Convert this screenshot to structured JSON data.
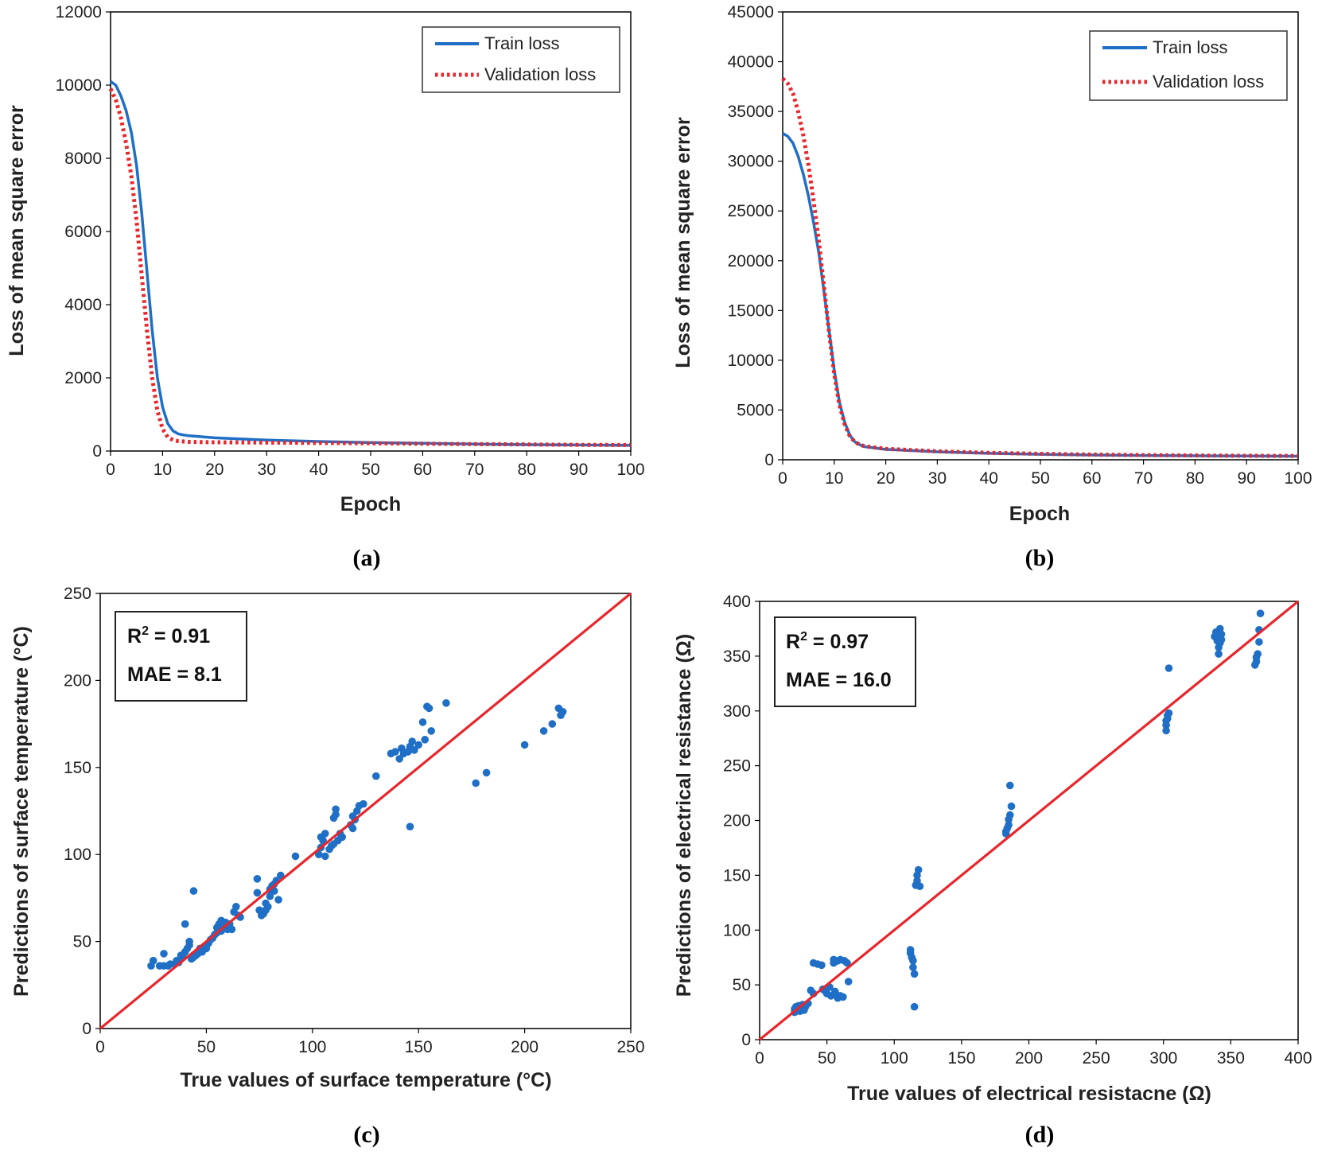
{
  "figure": {
    "colors": {
      "train": "#1f6fc6",
      "validation": "#e8262b",
      "points": "#1f6fc6",
      "ideal_line": "#e8262b",
      "frame": "#000000"
    }
  },
  "chart_data": [
    {
      "id": "a",
      "type": "line",
      "caption": "(a)",
      "xlabel": "Epoch",
      "ylabel": "Loss of mean square error",
      "xlim": [
        0,
        100
      ],
      "ylim": [
        0,
        12000
      ],
      "xticks": [
        "0",
        "10",
        "20",
        "30",
        "40",
        "50",
        "60",
        "70",
        "80",
        "90",
        "100"
      ],
      "yticks": [
        "0",
        "2000",
        "4000",
        "6000",
        "8000",
        "10000",
        "12000"
      ],
      "legend": {
        "position": "top-right",
        "entries": [
          "Train loss",
          "Validation loss"
        ]
      },
      "series": [
        {
          "name": "Train loss",
          "style": "solid",
          "x": [
            0,
            1,
            2,
            3,
            4,
            5,
            6,
            7,
            8,
            9,
            10,
            11,
            12,
            13,
            14,
            15,
            20,
            30,
            40,
            50,
            60,
            70,
            80,
            90,
            100
          ],
          "y": [
            10100,
            10000,
            9700,
            9300,
            8700,
            7800,
            6500,
            4900,
            3300,
            2000,
            1200,
            750,
            550,
            470,
            440,
            420,
            360,
            300,
            260,
            230,
            210,
            190,
            175,
            165,
            155
          ]
        },
        {
          "name": "Validation loss",
          "style": "dotted",
          "x": [
            0,
            1,
            2,
            3,
            4,
            5,
            6,
            7,
            8,
            9,
            10,
            11,
            12,
            13,
            14,
            15,
            20,
            30,
            40,
            50,
            60,
            70,
            80,
            90,
            100
          ],
          "y": [
            9900,
            9600,
            9100,
            8400,
            7500,
            6300,
            4800,
            3300,
            2000,
            1100,
            600,
            380,
            300,
            270,
            260,
            250,
            240,
            230,
            220,
            210,
            200,
            190,
            180,
            170,
            165
          ]
        }
      ]
    },
    {
      "id": "b",
      "type": "line",
      "caption": "(b)",
      "xlabel": "Epoch",
      "ylabel": "Loss of mean square error",
      "xlim": [
        0,
        100
      ],
      "ylim": [
        0,
        45000
      ],
      "xticks": [
        "0",
        "10",
        "20",
        "30",
        "40",
        "50",
        "60",
        "70",
        "80",
        "90",
        "100"
      ],
      "yticks": [
        "0",
        "5000",
        "10000",
        "15000",
        "20000",
        "25000",
        "30000",
        "35000",
        "40000",
        "45000"
      ],
      "legend": {
        "position": "top-right",
        "entries": [
          "Train loss",
          "Validation loss"
        ]
      },
      "series": [
        {
          "name": "Train loss",
          "style": "solid",
          "x": [
            0,
            1,
            2,
            3,
            4,
            5,
            6,
            7,
            8,
            9,
            10,
            11,
            12,
            13,
            14,
            15,
            16,
            20,
            30,
            40,
            50,
            60,
            70,
            80,
            90,
            100
          ],
          "y": [
            32800,
            32500,
            31800,
            30500,
            28700,
            26500,
            23800,
            20800,
            17000,
            13000,
            9000,
            5800,
            3800,
            2500,
            1800,
            1500,
            1300,
            1050,
            800,
            650,
            550,
            480,
            430,
            400,
            380,
            360
          ]
        },
        {
          "name": "Validation loss",
          "style": "dotted",
          "x": [
            0,
            1,
            2,
            3,
            4,
            5,
            6,
            7,
            8,
            9,
            10,
            11,
            12,
            13,
            14,
            15,
            16,
            20,
            30,
            40,
            50,
            60,
            70,
            80,
            90,
            100
          ],
          "y": [
            38300,
            37800,
            36800,
            35000,
            32600,
            29600,
            26000,
            22000,
            17500,
            12800,
            8600,
            5500,
            3600,
            2400,
            1800,
            1500,
            1350,
            1100,
            850,
            700,
            600,
            520,
            470,
            430,
            400,
            380
          ]
        }
      ]
    },
    {
      "id": "c",
      "type": "scatter",
      "caption": "(c)",
      "xlabel": "True values of surface temperature (°C)",
      "ylabel": "Predictions of surface temperature (°C)",
      "xlim": [
        0,
        250
      ],
      "ylim": [
        0,
        250
      ],
      "xticks": [
        "0",
        "50",
        "100",
        "150",
        "200",
        "250"
      ],
      "yticks": [
        "0",
        "50",
        "100",
        "150",
        "200",
        "250"
      ],
      "ideal_line": [
        [
          0,
          0
        ],
        [
          250,
          250
        ]
      ],
      "stats": {
        "r2_label": "R",
        "r2_sup": "2",
        "r2_value": " = 0.91",
        "mae": "MAE = 8.1"
      },
      "points": [
        [
          24,
          36
        ],
        [
          25,
          39
        ],
        [
          28,
          36
        ],
        [
          30,
          36
        ],
        [
          30,
          43
        ],
        [
          32,
          36
        ],
        [
          33,
          37
        ],
        [
          35,
          37
        ],
        [
          36,
          39
        ],
        [
          37,
          38
        ],
        [
          38,
          40
        ],
        [
          38,
          42
        ],
        [
          39,
          41
        ],
        [
          40,
          44
        ],
        [
          40,
          60
        ],
        [
          41,
          46
        ],
        [
          42,
          48
        ],
        [
          42,
          50
        ],
        [
          43,
          40
        ],
        [
          44,
          79
        ],
        [
          44,
          41
        ],
        [
          45,
          42
        ],
        [
          46,
          43
        ],
        [
          47,
          46
        ],
        [
          48,
          44
        ],
        [
          49,
          47
        ],
        [
          50,
          46
        ],
        [
          50,
          48
        ],
        [
          51,
          49
        ],
        [
          52,
          51
        ],
        [
          53,
          52
        ],
        [
          54,
          54
        ],
        [
          55,
          55
        ],
        [
          55,
          58
        ],
        [
          56,
          60
        ],
        [
          57,
          56
        ],
        [
          57,
          62
        ],
        [
          58,
          59
        ],
        [
          59,
          61
        ],
        [
          60,
          57
        ],
        [
          60,
          58
        ],
        [
          61,
          60
        ],
        [
          62,
          57
        ],
        [
          63,
          67
        ],
        [
          64,
          70
        ],
        [
          65,
          65
        ],
        [
          66,
          64
        ],
        [
          74,
          86
        ],
        [
          74,
          78
        ],
        [
          75,
          68
        ],
        [
          76,
          65
        ],
        [
          77,
          66
        ],
        [
          78,
          72
        ],
        [
          78,
          68
        ],
        [
          79,
          70
        ],
        [
          80,
          76
        ],
        [
          80,
          80
        ],
        [
          81,
          82
        ],
        [
          82,
          83
        ],
        [
          82,
          79
        ],
        [
          83,
          85
        ],
        [
          84,
          74
        ],
        [
          85,
          88
        ],
        [
          92,
          99
        ],
        [
          103,
          100
        ],
        [
          104,
          104
        ],
        [
          104,
          110
        ],
        [
          105,
          108
        ],
        [
          106,
          112
        ],
        [
          106,
          99
        ],
        [
          108,
          103
        ],
        [
          109,
          105
        ],
        [
          110,
          106
        ],
        [
          110,
          121
        ],
        [
          111,
          123
        ],
        [
          111,
          126
        ],
        [
          112,
          108
        ],
        [
          113,
          112
        ],
        [
          114,
          110
        ],
        [
          118,
          117
        ],
        [
          119,
          115
        ],
        [
          119,
          122
        ],
        [
          120,
          120
        ],
        [
          121,
          125
        ],
        [
          122,
          128
        ],
        [
          124,
          129
        ],
        [
          130,
          145
        ],
        [
          137,
          158
        ],
        [
          139,
          159
        ],
        [
          141,
          155
        ],
        [
          142,
          161
        ],
        [
          143,
          158
        ],
        [
          145,
          159
        ],
        [
          146,
          162
        ],
        [
          146,
          116
        ],
        [
          147,
          165
        ],
        [
          148,
          160
        ],
        [
          150,
          163
        ],
        [
          152,
          176
        ],
        [
          153,
          166
        ],
        [
          154,
          185
        ],
        [
          155,
          184
        ],
        [
          156,
          171
        ],
        [
          163,
          187
        ],
        [
          177,
          141
        ],
        [
          182,
          147
        ],
        [
          200,
          163
        ],
        [
          209,
          171
        ],
        [
          213,
          175
        ],
        [
          216,
          184
        ],
        [
          217,
          180
        ],
        [
          218,
          182
        ]
      ]
    },
    {
      "id": "d",
      "type": "scatter",
      "caption": "(d)",
      "xlabel": "True values of electrical resistacne (Ω)",
      "ylabel": "Predictions of electrical resistance (Ω)",
      "xlim": [
        0,
        400
      ],
      "ylim": [
        0,
        400
      ],
      "xticks": [
        "0",
        "50",
        "100",
        "150",
        "200",
        "250",
        "300",
        "350",
        "400"
      ],
      "yticks": [
        "0",
        "50",
        "100",
        "150",
        "200",
        "250",
        "300",
        "350",
        "400"
      ],
      "ideal_line": [
        [
          0,
          0
        ],
        [
          400,
          400
        ]
      ],
      "stats": {
        "r2_label": "R",
        "r2_sup": "2",
        "r2_value": " = 0.97",
        "mae": "MAE = 16.0"
      },
      "points": [
        [
          26,
          25
        ],
        [
          26,
          28
        ],
        [
          27,
          30
        ],
        [
          28,
          27
        ],
        [
          29,
          31
        ],
        [
          30,
          26
        ],
        [
          31,
          29
        ],
        [
          32,
          32
        ],
        [
          33,
          27
        ],
        [
          34,
          30
        ],
        [
          36,
          33
        ],
        [
          38,
          45
        ],
        [
          40,
          42
        ],
        [
          40,
          70
        ],
        [
          43,
          69
        ],
        [
          46,
          68
        ],
        [
          47,
          46
        ],
        [
          49,
          44
        ],
        [
          50,
          42
        ],
        [
          50,
          47
        ],
        [
          52,
          48
        ],
        [
          53,
          40
        ],
        [
          55,
          73
        ],
        [
          55,
          70
        ],
        [
          56,
          44
        ],
        [
          57,
          41
        ],
        [
          58,
          38
        ],
        [
          58,
          72
        ],
        [
          60,
          40
        ],
        [
          60,
          73
        ],
        [
          62,
          39
        ],
        [
          63,
          72
        ],
        [
          65,
          70
        ],
        [
          66,
          53
        ],
        [
          112,
          82
        ],
        [
          112,
          79
        ],
        [
          113,
          75
        ],
        [
          114,
          72
        ],
        [
          114,
          66
        ],
        [
          115,
          60
        ],
        [
          115,
          30
        ],
        [
          116,
          141
        ],
        [
          117,
          145
        ],
        [
          117,
          150
        ],
        [
          118,
          155
        ],
        [
          119,
          140
        ],
        [
          183,
          190
        ],
        [
          183,
          188
        ],
        [
          184,
          193
        ],
        [
          185,
          196
        ],
        [
          185,
          201
        ],
        [
          186,
          205
        ],
        [
          186,
          232
        ],
        [
          187,
          213
        ],
        [
          302,
          282
        ],
        [
          302,
          287
        ],
        [
          302,
          291
        ],
        [
          303,
          293
        ],
        [
          303,
          296
        ],
        [
          304,
          298
        ],
        [
          304,
          339
        ],
        [
          338,
          368
        ],
        [
          339,
          372
        ],
        [
          340,
          364
        ],
        [
          341,
          358
        ],
        [
          341,
          352
        ],
        [
          342,
          375
        ],
        [
          342,
          362
        ],
        [
          343,
          365
        ],
        [
          343,
          370
        ],
        [
          368,
          342
        ],
        [
          369,
          345
        ],
        [
          369,
          349
        ],
        [
          370,
          352
        ],
        [
          371,
          363
        ],
        [
          371,
          374
        ],
        [
          372,
          389
        ]
      ]
    }
  ]
}
